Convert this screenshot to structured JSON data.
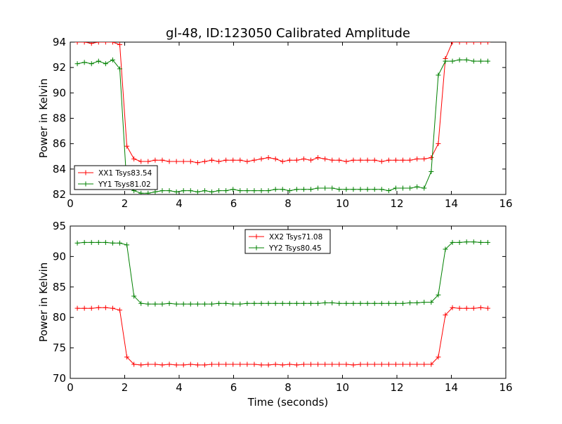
{
  "title": "gl-48, ID:123050 Calibrated Amplitude",
  "colors": {
    "xx": "#ff0000",
    "yy": "#008000"
  },
  "chart_data": [
    {
      "type": "line",
      "xlabel": "",
      "ylabel": "Power in Kelvin",
      "xlim": [
        0,
        16
      ],
      "ylim": [
        82,
        94
      ],
      "xticks": [
        0,
        2,
        4,
        6,
        8,
        10,
        12,
        14,
        16
      ],
      "yticks": [
        82,
        84,
        86,
        88,
        90,
        92,
        94
      ],
      "legend_loc": "lower-left",
      "series": [
        {
          "name": "XX1 Tsys83.54",
          "color": "#ff0000",
          "x": [
            0.26,
            0.52,
            0.78,
            1.04,
            1.3,
            1.56,
            1.82,
            2.08,
            2.34,
            2.6,
            2.86,
            3.12,
            3.38,
            3.64,
            3.9,
            4.16,
            4.42,
            4.68,
            4.94,
            5.2,
            5.46,
            5.72,
            5.98,
            6.24,
            6.5,
            6.76,
            7.02,
            7.28,
            7.54,
            7.8,
            8.06,
            8.32,
            8.58,
            8.84,
            9.1,
            9.36,
            9.62,
            9.88,
            10.14,
            10.4,
            10.66,
            10.92,
            11.18,
            11.44,
            11.7,
            11.96,
            12.22,
            12.48,
            12.74,
            13.0,
            13.26,
            13.52,
            13.78,
            14.04,
            14.3,
            14.56,
            14.82,
            15.08,
            15.34
          ],
          "y": [
            94.0,
            94.0,
            93.9,
            94.0,
            94.0,
            94.0,
            93.8,
            85.8,
            84.8,
            84.6,
            84.6,
            84.7,
            84.7,
            84.6,
            84.6,
            84.6,
            84.6,
            84.5,
            84.6,
            84.7,
            84.6,
            84.7,
            84.7,
            84.7,
            84.6,
            84.7,
            84.8,
            84.9,
            84.8,
            84.6,
            84.7,
            84.7,
            84.8,
            84.7,
            84.9,
            84.8,
            84.7,
            84.7,
            84.6,
            84.7,
            84.7,
            84.7,
            84.7,
            84.6,
            84.7,
            84.7,
            84.7,
            84.7,
            84.8,
            84.8,
            84.9,
            86.0,
            92.7,
            94.0,
            94.0,
            94.0,
            94.0,
            94.0,
            94.0
          ]
        },
        {
          "name": "YY1 Tsys81.02",
          "color": "#008000",
          "x": [
            0.26,
            0.52,
            0.78,
            1.04,
            1.3,
            1.56,
            1.82,
            2.08,
            2.34,
            2.6,
            2.86,
            3.12,
            3.38,
            3.64,
            3.9,
            4.16,
            4.42,
            4.68,
            4.94,
            5.2,
            5.46,
            5.72,
            5.98,
            6.24,
            6.5,
            6.76,
            7.02,
            7.28,
            7.54,
            7.8,
            8.06,
            8.32,
            8.58,
            8.84,
            9.1,
            9.36,
            9.62,
            9.88,
            10.14,
            10.4,
            10.66,
            10.92,
            11.18,
            11.44,
            11.7,
            11.96,
            12.22,
            12.48,
            12.74,
            13.0,
            13.26,
            13.52,
            13.78,
            14.04,
            14.3,
            14.56,
            14.82,
            15.08,
            15.34
          ],
          "y": [
            92.3,
            92.4,
            92.3,
            92.5,
            92.3,
            92.6,
            91.9,
            82.6,
            82.3,
            82.1,
            82.1,
            82.2,
            82.3,
            82.3,
            82.2,
            82.3,
            82.3,
            82.2,
            82.3,
            82.2,
            82.3,
            82.3,
            82.4,
            82.3,
            82.3,
            82.3,
            82.3,
            82.3,
            82.4,
            82.4,
            82.3,
            82.4,
            82.4,
            82.4,
            82.5,
            82.5,
            82.5,
            82.4,
            82.4,
            82.4,
            82.4,
            82.4,
            82.4,
            82.4,
            82.3,
            82.5,
            82.5,
            82.5,
            82.6,
            82.5,
            83.8,
            91.4,
            92.5,
            92.5,
            92.6,
            92.6,
            92.5,
            92.5,
            92.5
          ]
        }
      ]
    },
    {
      "type": "line",
      "xlabel": "Time (seconds)",
      "ylabel": "Power in Kelvin",
      "xlim": [
        0,
        16
      ],
      "ylim": [
        70,
        95
      ],
      "xticks": [
        0,
        2,
        4,
        6,
        8,
        10,
        12,
        14,
        16
      ],
      "yticks": [
        70,
        75,
        80,
        85,
        90,
        95
      ],
      "legend_loc": "upper-center",
      "series": [
        {
          "name": "XX2 Tsys71.08",
          "color": "#ff0000",
          "x": [
            0.26,
            0.52,
            0.78,
            1.04,
            1.3,
            1.56,
            1.82,
            2.08,
            2.34,
            2.6,
            2.86,
            3.12,
            3.38,
            3.64,
            3.9,
            4.16,
            4.42,
            4.68,
            4.94,
            5.2,
            5.46,
            5.72,
            5.98,
            6.24,
            6.5,
            6.76,
            7.02,
            7.28,
            7.54,
            7.8,
            8.06,
            8.32,
            8.58,
            8.84,
            9.1,
            9.36,
            9.62,
            9.88,
            10.14,
            10.4,
            10.66,
            10.92,
            11.18,
            11.44,
            11.7,
            11.96,
            12.22,
            12.48,
            12.74,
            13.0,
            13.26,
            13.52,
            13.78,
            14.04,
            14.3,
            14.56,
            14.82,
            15.08,
            15.34
          ],
          "y": [
            81.5,
            81.5,
            81.5,
            81.6,
            81.6,
            81.5,
            81.2,
            73.5,
            72.3,
            72.2,
            72.3,
            72.3,
            72.2,
            72.3,
            72.2,
            72.2,
            72.3,
            72.2,
            72.2,
            72.3,
            72.3,
            72.3,
            72.3,
            72.3,
            72.3,
            72.3,
            72.2,
            72.2,
            72.3,
            72.2,
            72.3,
            72.2,
            72.3,
            72.3,
            72.3,
            72.3,
            72.3,
            72.3,
            72.3,
            72.2,
            72.3,
            72.3,
            72.3,
            72.3,
            72.3,
            72.3,
            72.3,
            72.3,
            72.3,
            72.3,
            72.3,
            73.5,
            80.4,
            81.6,
            81.5,
            81.5,
            81.5,
            81.6,
            81.5
          ]
        },
        {
          "name": "YY2 Tsys80.45",
          "color": "#008000",
          "x": [
            0.26,
            0.52,
            0.78,
            1.04,
            1.3,
            1.56,
            1.82,
            2.08,
            2.34,
            2.6,
            2.86,
            3.12,
            3.38,
            3.64,
            3.9,
            4.16,
            4.42,
            4.68,
            4.94,
            5.2,
            5.46,
            5.72,
            5.98,
            6.24,
            6.5,
            6.76,
            7.02,
            7.28,
            7.54,
            7.8,
            8.06,
            8.32,
            8.58,
            8.84,
            9.1,
            9.36,
            9.62,
            9.88,
            10.14,
            10.4,
            10.66,
            10.92,
            11.18,
            11.44,
            11.7,
            11.96,
            12.22,
            12.48,
            12.74,
            13.0,
            13.26,
            13.52,
            13.78,
            14.04,
            14.3,
            14.56,
            14.82,
            15.08,
            15.34
          ],
          "y": [
            92.2,
            92.3,
            92.3,
            92.3,
            92.3,
            92.2,
            92.2,
            91.9,
            83.5,
            82.3,
            82.2,
            82.2,
            82.2,
            82.3,
            82.2,
            82.2,
            82.2,
            82.2,
            82.2,
            82.2,
            82.3,
            82.3,
            82.2,
            82.2,
            82.3,
            82.3,
            82.3,
            82.3,
            82.3,
            82.3,
            82.3,
            82.3,
            82.3,
            82.3,
            82.3,
            82.4,
            82.4,
            82.3,
            82.3,
            82.3,
            82.3,
            82.3,
            82.3,
            82.3,
            82.3,
            82.3,
            82.3,
            82.4,
            82.4,
            82.5,
            82.5,
            83.7,
            91.2,
            92.3,
            92.3,
            92.4,
            92.4,
            92.3,
            92.3
          ]
        }
      ]
    }
  ]
}
